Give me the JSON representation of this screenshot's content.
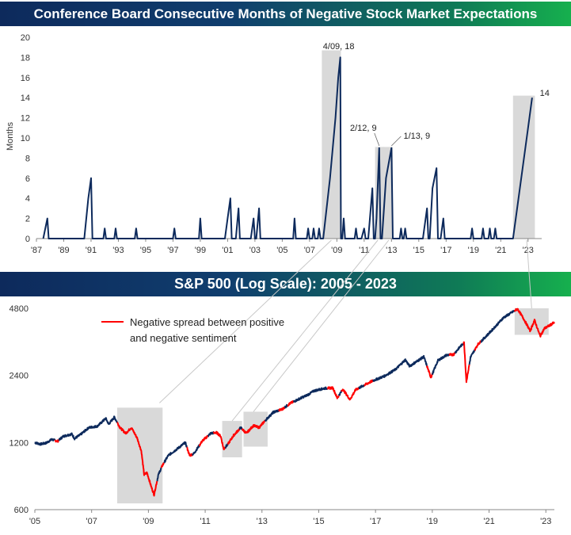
{
  "chart_data": [
    {
      "type": "line",
      "title": "Conference Board Consecutive Months of Negative Stock Market Expectations",
      "ylabel": "Months",
      "xlabel": "",
      "ylim": [
        0,
        20
      ],
      "xlim": [
        1987.0,
        2024.0
      ],
      "yticks": [
        0,
        2,
        4,
        6,
        8,
        10,
        12,
        14,
        16,
        18,
        20
      ],
      "xticks": [
        {
          "label": "'87",
          "x": 1987
        },
        {
          "label": "'89",
          "x": 1989
        },
        {
          "label": "'91",
          "x": 1991
        },
        {
          "label": "'93",
          "x": 1993
        },
        {
          "label": "'95",
          "x": 1995
        },
        {
          "label": "'97",
          "x": 1997
        },
        {
          "label": "'99",
          "x": 1999
        },
        {
          "label": "'01",
          "x": 2001
        },
        {
          "label": "'03",
          "x": 2003
        },
        {
          "label": "'05",
          "x": 2005
        },
        {
          "label": "'07",
          "x": 2007
        },
        {
          "label": "'09",
          "x": 2009
        },
        {
          "label": "'11",
          "x": 2011
        },
        {
          "label": "'13",
          "x": 2013
        },
        {
          "label": "'15",
          "x": 2015
        },
        {
          "label": "'17",
          "x": 2017
        },
        {
          "label": "'19",
          "x": 2019
        },
        {
          "label": "'21",
          "x": 2021
        },
        {
          "label": "'23",
          "x": 2023
        }
      ],
      "color": "#0d2a5c",
      "highlight_color": "#d9d9d9",
      "shaded_periods": [
        [
          2007.9,
          2009.3
        ],
        [
          2011.8,
          2012.5
        ],
        [
          2012.3,
          2013.1
        ],
        [
          2021.9,
          2023.5
        ]
      ],
      "annotations": [
        {
          "text": "4/09, 18",
          "x": 2009.25,
          "y": 18
        },
        {
          "text": "2/12, 9",
          "x": 2012.1,
          "y": 9
        },
        {
          "text": "1/13, 9",
          "x": 2013.0,
          "y": 9
        },
        {
          "text": "14",
          "x": 2023.4,
          "y": 14
        }
      ],
      "series": [
        {
          "values": [
            [
              1987.5,
              0
            ],
            [
              1987.8,
              2
            ],
            [
              1987.9,
              0
            ],
            [
              1990.5,
              0
            ],
            [
              1990.8,
              4
            ],
            [
              1991.0,
              6
            ],
            [
              1991.1,
              0
            ],
            [
              1991.9,
              0
            ],
            [
              1992.0,
              1
            ],
            [
              1992.1,
              0
            ],
            [
              1992.7,
              0
            ],
            [
              1992.8,
              1
            ],
            [
              1992.9,
              0
            ],
            [
              1994.2,
              0
            ],
            [
              1994.3,
              1
            ],
            [
              1994.4,
              0
            ],
            [
              1997.0,
              0
            ],
            [
              1997.1,
              1
            ],
            [
              1997.2,
              0
            ],
            [
              1998.9,
              0
            ],
            [
              1999.0,
              2
            ],
            [
              1999.1,
              0
            ],
            [
              2000.8,
              0
            ],
            [
              2001.0,
              2
            ],
            [
              2001.2,
              4
            ],
            [
              2001.3,
              0
            ],
            [
              2001.6,
              0
            ],
            [
              2001.8,
              3
            ],
            [
              2001.9,
              0
            ],
            [
              2002.7,
              0
            ],
            [
              2002.9,
              2
            ],
            [
              2003.0,
              0
            ],
            [
              2003.1,
              0
            ],
            [
              2003.3,
              3
            ],
            [
              2003.4,
              0
            ],
            [
              2005.8,
              0
            ],
            [
              2005.9,
              2
            ],
            [
              2006.0,
              0
            ],
            [
              2006.8,
              0
            ],
            [
              2006.9,
              1
            ],
            [
              2007.0,
              0
            ],
            [
              2007.2,
              0
            ],
            [
              2007.3,
              1
            ],
            [
              2007.4,
              0
            ],
            [
              2007.6,
              0
            ],
            [
              2007.7,
              1
            ],
            [
              2007.8,
              0
            ],
            [
              2008.0,
              0
            ],
            [
              2008.5,
              6
            ],
            [
              2008.9,
              12
            ],
            [
              2009.1,
              16
            ],
            [
              2009.25,
              18
            ],
            [
              2009.3,
              0
            ],
            [
              2009.4,
              0
            ],
            [
              2009.5,
              2
            ],
            [
              2009.6,
              0
            ],
            [
              2010.3,
              0
            ],
            [
              2010.4,
              1
            ],
            [
              2010.5,
              0
            ],
            [
              2010.8,
              0
            ],
            [
              2011.0,
              1
            ],
            [
              2011.1,
              0
            ],
            [
              2011.3,
              0
            ],
            [
              2011.6,
              5
            ],
            [
              2011.7,
              0
            ],
            [
              2011.8,
              0
            ],
            [
              2011.9,
              2
            ],
            [
              2012.1,
              9
            ],
            [
              2012.2,
              0
            ],
            [
              2012.3,
              0
            ],
            [
              2012.6,
              6
            ],
            [
              2013.0,
              9
            ],
            [
              2013.1,
              0
            ],
            [
              2013.6,
              0
            ],
            [
              2013.7,
              1
            ],
            [
              2013.8,
              0
            ],
            [
              2013.9,
              0
            ],
            [
              2014.0,
              1
            ],
            [
              2014.1,
              0
            ],
            [
              2015.3,
              0
            ],
            [
              2015.6,
              3
            ],
            [
              2015.7,
              0
            ],
            [
              2015.8,
              0
            ],
            [
              2016.0,
              5
            ],
            [
              2016.3,
              7
            ],
            [
              2016.4,
              0
            ],
            [
              2016.6,
              0
            ],
            [
              2016.8,
              2
            ],
            [
              2016.9,
              0
            ],
            [
              2018.8,
              0
            ],
            [
              2018.9,
              1
            ],
            [
              2019.0,
              0
            ],
            [
              2019.6,
              0
            ],
            [
              2019.7,
              1
            ],
            [
              2019.8,
              0
            ],
            [
              2020.1,
              0
            ],
            [
              2020.2,
              1
            ],
            [
              2020.3,
              0
            ],
            [
              2020.5,
              0
            ],
            [
              2020.6,
              1
            ],
            [
              2020.7,
              0
            ],
            [
              2021.9,
              0
            ],
            [
              2022.2,
              3
            ],
            [
              2022.6,
              7
            ],
            [
              2023.0,
              11
            ],
            [
              2023.3,
              14
            ]
          ]
        }
      ]
    },
    {
      "type": "line",
      "title": "S&P 500 (Log Scale): 2005 - 2023",
      "xlabel": "",
      "ylabel": "",
      "y_scale": "log",
      "ylim": [
        600,
        5400
      ],
      "xlim": [
        2005.0,
        2023.3
      ],
      "yticks": [
        600,
        1200,
        2400,
        4800
      ],
      "xticks": [
        {
          "label": "'05",
          "x": 2005
        },
        {
          "label": "'07",
          "x": 2007
        },
        {
          "label": "'09",
          "x": 2009
        },
        {
          "label": "'11",
          "x": 2011
        },
        {
          "label": "'13",
          "x": 2013
        },
        {
          "label": "'15",
          "x": 2015
        },
        {
          "label": "'17",
          "x": 2017
        },
        {
          "label": "'19",
          "x": 2019
        },
        {
          "label": "'21",
          "x": 2021
        },
        {
          "label": "'23",
          "x": 2023
        }
      ],
      "legend": {
        "text": "Negative spread between positive and negative sentiment",
        "color": "#ff0000",
        "placement": "top-left"
      },
      "line_color": "#0d2a5c",
      "negative_color": "#ff0000",
      "highlight_boxes": [
        {
          "x0": 2007.9,
          "x1": 2009.5,
          "y0": 640,
          "y1": 1720
        },
        {
          "x0": 2011.6,
          "x1": 2012.3,
          "y0": 1030,
          "y1": 1500
        },
        {
          "x0": 2012.35,
          "x1": 2013.2,
          "y0": 1150,
          "y1": 1650
        },
        {
          "x0": 2021.9,
          "x1": 2023.1,
          "y0": 3650,
          "y1": 4800
        }
      ],
      "negative_periods": [
        [
          2005.7,
          2005.85
        ],
        [
          2007.9,
          2009.3
        ],
        [
          2009.45,
          2009.55
        ],
        [
          2010.35,
          2010.55
        ],
        [
          2010.8,
          2011.1
        ],
        [
          2011.3,
          2011.7
        ],
        [
          2011.8,
          2012.2
        ],
        [
          2012.3,
          2013.1
        ],
        [
          2013.6,
          2013.8
        ],
        [
          2013.9,
          2014.1
        ],
        [
          2015.3,
          2015.7
        ],
        [
          2015.8,
          2016.4
        ],
        [
          2016.6,
          2016.9
        ],
        [
          2018.8,
          2019.0
        ],
        [
          2019.6,
          2019.8
        ],
        [
          2020.1,
          2020.3
        ],
        [
          2020.5,
          2020.7
        ],
        [
          2021.9,
          2023.3
        ]
      ],
      "series": [
        {
          "values": [
            [
              2005.0,
              1200
            ],
            [
              2005.2,
              1180
            ],
            [
              2005.4,
              1195
            ],
            [
              2005.6,
              1240
            ],
            [
              2005.8,
              1215
            ],
            [
              2006.0,
              1280
            ],
            [
              2006.3,
              1310
            ],
            [
              2006.4,
              1250
            ],
            [
              2006.6,
              1300
            ],
            [
              2006.9,
              1400
            ],
            [
              2007.2,
              1420
            ],
            [
              2007.5,
              1540
            ],
            [
              2007.6,
              1450
            ],
            [
              2007.8,
              1560
            ],
            [
              2008.0,
              1400
            ],
            [
              2008.2,
              1320
            ],
            [
              2008.4,
              1400
            ],
            [
              2008.6,
              1260
            ],
            [
              2008.75,
              1100
            ],
            [
              2008.85,
              860
            ],
            [
              2008.95,
              880
            ],
            [
              2009.1,
              760
            ],
            [
              2009.2,
              700
            ],
            [
              2009.35,
              860
            ],
            [
              2009.5,
              950
            ],
            [
              2009.7,
              1050
            ],
            [
              2010.0,
              1120
            ],
            [
              2010.3,
              1200
            ],
            [
              2010.45,
              1050
            ],
            [
              2010.6,
              1070
            ],
            [
              2010.9,
              1220
            ],
            [
              2011.2,
              1320
            ],
            [
              2011.4,
              1330
            ],
            [
              2011.55,
              1280
            ],
            [
              2011.65,
              1120
            ],
            [
              2011.8,
              1180
            ],
            [
              2012.0,
              1290
            ],
            [
              2012.25,
              1400
            ],
            [
              2012.45,
              1320
            ],
            [
              2012.7,
              1430
            ],
            [
              2012.9,
              1400
            ],
            [
              2013.1,
              1500
            ],
            [
              2013.4,
              1640
            ],
            [
              2013.7,
              1690
            ],
            [
              2014.0,
              1800
            ],
            [
              2014.3,
              1880
            ],
            [
              2014.6,
              1960
            ],
            [
              2014.85,
              2050
            ],
            [
              2015.2,
              2100
            ],
            [
              2015.5,
              2110
            ],
            [
              2015.65,
              1900
            ],
            [
              2015.85,
              2080
            ],
            [
              2016.1,
              1870
            ],
            [
              2016.3,
              2070
            ],
            [
              2016.6,
              2170
            ],
            [
              2016.9,
              2270
            ],
            [
              2017.3,
              2380
            ],
            [
              2017.7,
              2550
            ],
            [
              2018.05,
              2820
            ],
            [
              2018.2,
              2640
            ],
            [
              2018.7,
              2910
            ],
            [
              2018.95,
              2350
            ],
            [
              2019.2,
              2800
            ],
            [
              2019.5,
              2960
            ],
            [
              2019.75,
              2980
            ],
            [
              2020.0,
              3250
            ],
            [
              2020.12,
              3370
            ],
            [
              2020.2,
              2250
            ],
            [
              2020.35,
              2900
            ],
            [
              2020.6,
              3300
            ],
            [
              2020.9,
              3600
            ],
            [
              2021.2,
              3950
            ],
            [
              2021.5,
              4350
            ],
            [
              2021.8,
              4600
            ],
            [
              2022.0,
              4770
            ],
            [
              2022.2,
              4350
            ],
            [
              2022.45,
              3800
            ],
            [
              2022.6,
              4250
            ],
            [
              2022.8,
              3600
            ],
            [
              2022.95,
              3900
            ],
            [
              2023.1,
              4000
            ],
            [
              2023.3,
              4150
            ]
          ]
        }
      ]
    }
  ]
}
